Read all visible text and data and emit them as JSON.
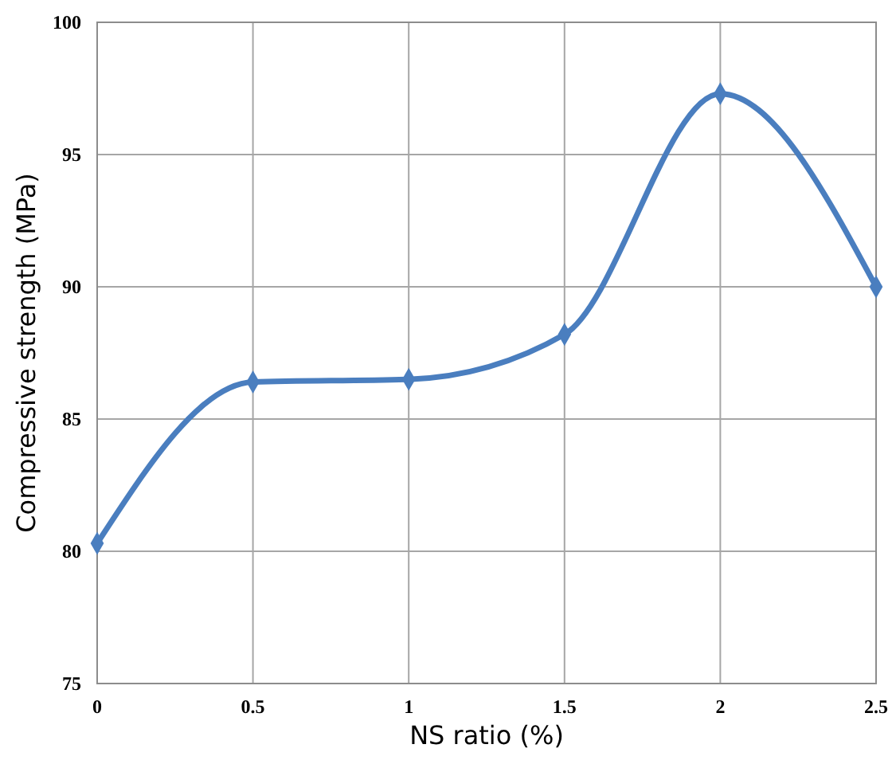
{
  "chart_data": {
    "type": "line",
    "xlabel": "NS ratio (%)",
    "ylabel": "Compressive  strength (MPa)",
    "x": [
      0,
      0.5,
      1,
      1.5,
      2,
      2.5
    ],
    "series": [
      {
        "color": "#4a7ebf",
        "values": [
          80.3,
          86.4,
          86.5,
          88.2,
          97.3,
          90.0
        ]
      }
    ],
    "xlim": [
      0,
      2.5
    ],
    "xticks": [
      0,
      0.5,
      1,
      1.5,
      2,
      2.5
    ],
    "ylim": [
      75,
      100
    ],
    "yticks": [
      75,
      80,
      85,
      90,
      95,
      100
    ],
    "grid": true,
    "marker": "diamond",
    "line_style": "solid"
  }
}
